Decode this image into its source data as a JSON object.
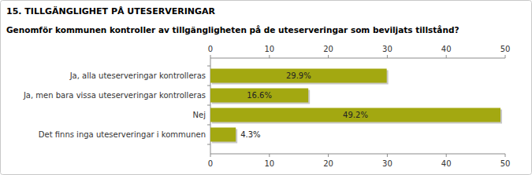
{
  "chart_data": {
    "type": "bar",
    "orientation": "horizontal",
    "title": "15. TILLGÄNGLIGHET PÅ UTESERVERINGAR",
    "subtitle": "Genomför kommunen kontroller av tillgängligheten på de uteserveringar som beviljats tillstånd?",
    "categories": [
      "Ja, alla uteserveringar kontrolleras",
      "Ja, men bara vissa uteserveringar kontrolleras",
      "Nej",
      "Det finns inga uteserveringar i kommunen"
    ],
    "values": [
      29.9,
      16.6,
      49.2,
      4.3
    ],
    "value_labels": [
      "29.9%",
      "16.6%",
      "49.2%",
      "4.3%"
    ],
    "color": "#a3a811",
    "xlim": [
      0,
      50
    ],
    "xticks": [
      0,
      10,
      20,
      30,
      40,
      50
    ],
    "data_labels": true,
    "grid": false
  }
}
